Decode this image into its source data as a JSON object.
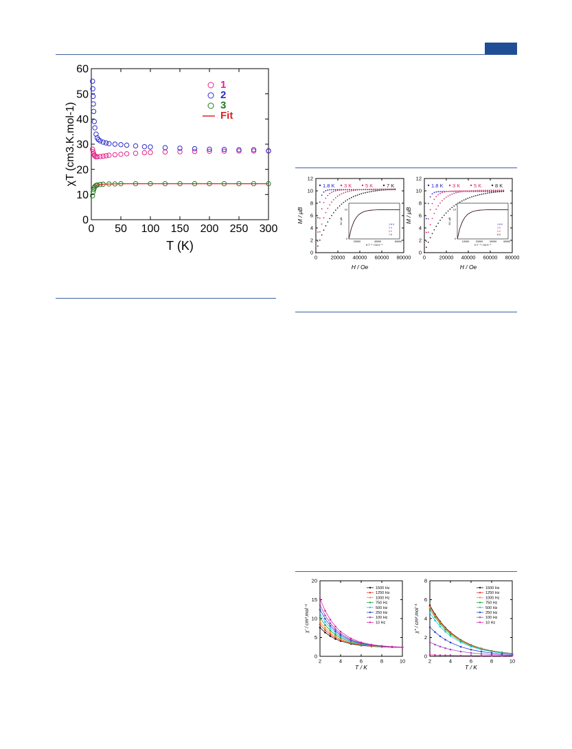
{
  "colors": {
    "rule": "#3a5f9e",
    "tab": "#1f4e96"
  },
  "chart_data": [
    {
      "type": "scatter",
      "title": "",
      "xlabel": "T (K)",
      "ylabel": "χT (cm3.K.mol-1)",
      "xlim": [
        0,
        300
      ],
      "ylim": [
        0,
        60
      ],
      "xticks": [
        "0",
        "50",
        "100",
        "150",
        "200",
        "250",
        "300"
      ],
      "yticks": [
        "0",
        "10",
        "20",
        "30",
        "40",
        "50",
        "60"
      ],
      "legend_position": "top-right",
      "series": [
        {
          "name": "1",
          "color": "#e8208a",
          "x": [
            2,
            3,
            4,
            5,
            6,
            8,
            10,
            15,
            20,
            25,
            30,
            40,
            50,
            60,
            75,
            90,
            100,
            125,
            150,
            175,
            200,
            225,
            250,
            275,
            300
          ],
          "y": [
            28,
            27,
            26.2,
            25.7,
            25.3,
            25,
            25,
            25.1,
            25.2,
            25.4,
            25.6,
            25.8,
            26,
            26.2,
            26.4,
            26.6,
            26.7,
            26.9,
            27,
            27.1,
            27.2,
            27.2,
            27.3,
            27.3,
            27.4
          ]
        },
        {
          "name": "2",
          "color": "#2a2acc",
          "x": [
            2,
            2.5,
            3,
            3.5,
            4,
            5,
            6,
            8,
            10,
            12,
            15,
            20,
            25,
            30,
            40,
            50,
            60,
            75,
            90,
            100,
            125,
            150,
            175,
            200,
            225,
            250,
            275,
            300
          ],
          "y": [
            55,
            52,
            49,
            46,
            43,
            39,
            36.5,
            34,
            32.5,
            31.8,
            31.3,
            30.8,
            30.5,
            30.2,
            30,
            29.8,
            29.6,
            29.3,
            29,
            28.9,
            28.6,
            28.4,
            28.2,
            28,
            27.9,
            27.8,
            27.8,
            27.3
          ]
        },
        {
          "name": "3",
          "color": "#1e7a1e",
          "x": [
            2,
            3,
            4,
            5,
            6,
            8,
            10,
            15,
            20,
            30,
            40,
            50,
            75,
            100,
            125,
            150,
            175,
            200,
            225,
            250,
            275,
            300
          ],
          "y": [
            9.5,
            11,
            12,
            12.7,
            13.2,
            13.6,
            13.8,
            14,
            14.1,
            14.2,
            14.2,
            14.3,
            14.3,
            14.3,
            14.3,
            14.3,
            14.3,
            14.3,
            14.3,
            14.3,
            14.3,
            14.3
          ]
        },
        {
          "name": "Fit",
          "color": "#e02020",
          "line": true,
          "x": [
            5,
            10,
            20,
            50,
            100,
            150,
            200,
            250,
            300
          ],
          "y": [
            12.8,
            13.8,
            14.1,
            14.3,
            14.3,
            14.3,
            14.3,
            14.3,
            14.3
          ]
        }
      ]
    },
    {
      "type": "scatter",
      "xlabel": "H / Oe",
      "ylabel": "M / μB",
      "xlim": [
        0,
        80000
      ],
      "ylim": [
        0,
        12
      ],
      "xticks": [
        "0",
        "20000",
        "40000",
        "60000",
        "80000"
      ],
      "yticks": [
        "0",
        "2",
        "4",
        "6",
        "8",
        "10",
        "12"
      ],
      "legend_position": "top",
      "series": [
        {
          "name": "1.8 K",
          "color": "#1a1acc",
          "k": 0.00045,
          "m": 10.2
        },
        {
          "name": "3 K",
          "color": "#e0205a",
          "k": 0.00022,
          "m": 10.2
        },
        {
          "name": "5 K",
          "color": "#cc3060",
          "k": 0.00011,
          "m": 10.3
        },
        {
          "name": "7 K",
          "color": "#222222",
          "k": 6e-05,
          "m": 10.4
        }
      ],
      "inset": {
        "xlabel": "H T⁻¹ / Oe.K⁻¹",
        "ylabel": "M / μB",
        "xticks": [
          "20000",
          "40000",
          "60000"
        ],
        "yticks": [
          "0",
          "10"
        ],
        "legend": [
          "1.8 K",
          "3 K",
          "5 K",
          "7 K"
        ]
      }
    },
    {
      "type": "scatter",
      "xlabel": "H / Oe",
      "ylabel": "M / μB",
      "xlim": [
        0,
        80000
      ],
      "ylim": [
        0,
        12
      ],
      "xticks": [
        "0",
        "20000",
        "40000",
        "60000",
        "80000"
      ],
      "yticks": [
        "0",
        "2",
        "4",
        "6",
        "8",
        "10",
        "12"
      ],
      "legend_position": "top",
      "series": [
        {
          "name": "1.8 K",
          "color": "#1a1acc",
          "k": 0.00045,
          "m": 9.9
        },
        {
          "name": "3 K",
          "color": "#e0205a",
          "k": 0.00022,
          "m": 10.0
        },
        {
          "name": "5 K",
          "color": "#cc3060",
          "k": 0.00011,
          "m": 10.1
        },
        {
          "name": "8 K",
          "color": "#222222",
          "k": 5e-05,
          "m": 10.2
        }
      ],
      "inset": {
        "xlabel": "H T⁻¹ / Oe.K⁻¹",
        "ylabel": "M / μB",
        "xticks": [
          "10000",
          "20000",
          "30000",
          "40000"
        ],
        "yticks": [
          "0",
          "10"
        ],
        "legend": [
          "1.8 K",
          "3 K",
          "5 K",
          "8 K"
        ]
      }
    },
    {
      "type": "line",
      "xlabel": "T / K",
      "ylabel": "χ' / cm³.mol⁻¹",
      "xlim": [
        2,
        10
      ],
      "ylim": [
        0,
        20
      ],
      "xticks": [
        "2",
        "4",
        "6",
        "8",
        "10"
      ],
      "yticks": [
        "0",
        "5",
        "10",
        "15",
        "20"
      ],
      "legend_position": "top-right",
      "x": [
        2,
        2.5,
        3,
        3.5,
        4,
        5,
        6,
        7,
        8,
        9,
        10
      ],
      "series": [
        {
          "name": "1500 Hz",
          "color": "#111111",
          "a": 7.6
        },
        {
          "name": "1250 Hz",
          "color": "#e03030",
          "a": 8.4
        },
        {
          "name": "1000 Hz",
          "color": "#ff8c1a",
          "a": 9.2
        },
        {
          "name": "750 Hz",
          "color": "#20a040",
          "a": 10.2
        },
        {
          "name": "500 Hz",
          "color": "#20c0e0",
          "a": 11.3
        },
        {
          "name": "250 Hz",
          "color": "#2a40cc",
          "a": 12.4
        },
        {
          "name": "100 Hz",
          "color": "#a040c0",
          "a": 13.6
        },
        {
          "name": "10 Hz",
          "color": "#e020a0",
          "a": 15.2
        }
      ]
    },
    {
      "type": "line",
      "xlabel": "T / K",
      "ylabel": "χ'' / cm³.mol⁻¹",
      "xlim": [
        2,
        10
      ],
      "ylim": [
        0,
        8
      ],
      "xticks": [
        "2",
        "4",
        "6",
        "8",
        "10"
      ],
      "yticks": [
        "0",
        "2",
        "4",
        "6",
        "8"
      ],
      "legend_position": "top-right",
      "x": [
        2,
        2.5,
        3,
        3.5,
        4,
        5,
        6,
        7,
        8,
        9,
        10
      ],
      "series": [
        {
          "name": "1500 Hz",
          "color": "#111111",
          "a": 5.4
        },
        {
          "name": "1250 Hz",
          "color": "#e03030",
          "a": 5.3
        },
        {
          "name": "1000 Hz",
          "color": "#ff8c1a",
          "a": 5.2
        },
        {
          "name": "750 Hz",
          "color": "#20a040",
          "a": 5.0
        },
        {
          "name": "500 Hz",
          "color": "#20c0e0",
          "a": 4.6
        },
        {
          "name": "250 Hz",
          "color": "#2a40cc",
          "a": 3.1
        },
        {
          "name": "100 Hz",
          "color": "#a040c0",
          "a": 1.5
        },
        {
          "name": "10 Hz",
          "color": "#e020a0",
          "a": 0.15
        }
      ]
    }
  ]
}
